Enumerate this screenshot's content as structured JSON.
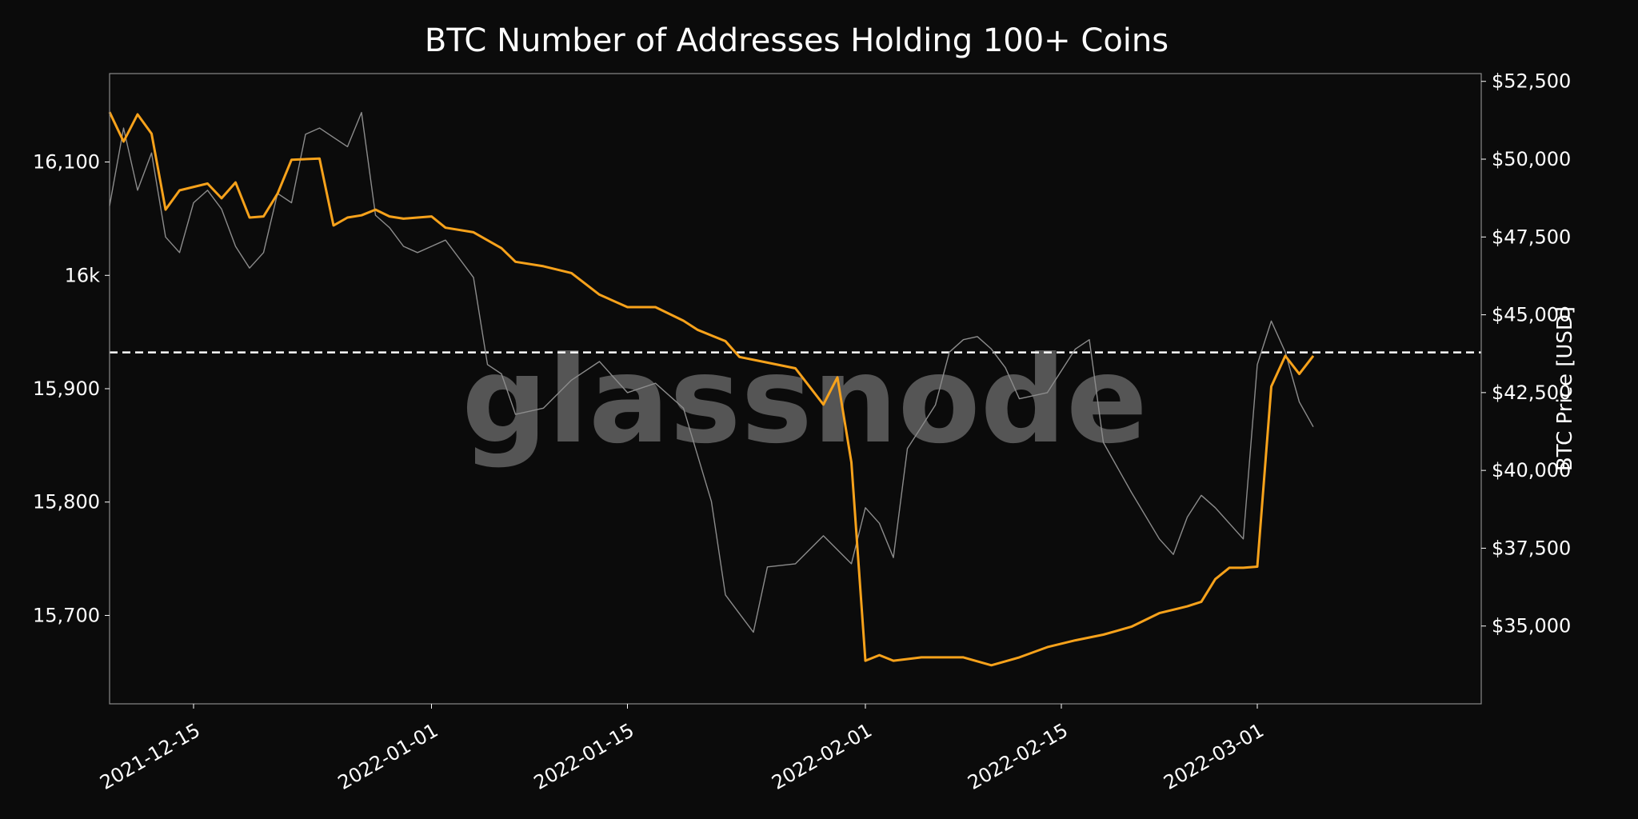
{
  "chart_data": {
    "type": "line",
    "title": "BTC Number of Addresses Holding 100+ Coins",
    "watermark": "glassnode",
    "xlim": [
      "2021-12-09",
      "2022-03-17"
    ],
    "x_ticks": [
      "2021-12-15",
      "2022-01-01",
      "2022-01-15",
      "2022-02-01",
      "2022-02-15",
      "2022-03-01"
    ],
    "left_axis": {
      "ylim": [
        15622,
        16178
      ],
      "ticks": [
        15700,
        15800,
        15900,
        16000,
        16100
      ],
      "tick_labels": [
        "15,700",
        "15,800",
        "15,900",
        "16k",
        "16,100"
      ]
    },
    "right_axis": {
      "ylabel": "BTC Price [USD]",
      "ylim": [
        32500,
        52750
      ],
      "ticks": [
        35000,
        37500,
        40000,
        42500,
        45000,
        47500,
        50000,
        52500
      ],
      "tick_labels": [
        "$35,000",
        "$37,500",
        "$40,000",
        "$42,500",
        "$45,000",
        "$47,500",
        "$50,000",
        "$52,500"
      ]
    },
    "reference_line": {
      "axis": "left",
      "value": 15932,
      "style": "dashed",
      "color": "#ffffff"
    },
    "series": [
      {
        "axis": "left",
        "color": "#f7a21b",
        "x": [
          "2021-12-09",
          "2021-12-10",
          "2021-12-11",
          "2021-12-12",
          "2021-12-13",
          "2021-12-14",
          "2021-12-16",
          "2021-12-17",
          "2021-12-18",
          "2021-12-19",
          "2021-12-20",
          "2021-12-21",
          "2021-12-22",
          "2021-12-24",
          "2021-12-25",
          "2021-12-26",
          "2021-12-27",
          "2021-12-28",
          "2021-12-29",
          "2021-12-30",
          "2022-01-01",
          "2022-01-02",
          "2022-01-04",
          "2022-01-06",
          "2022-01-07",
          "2022-01-09",
          "2022-01-11",
          "2022-01-13",
          "2022-01-15",
          "2022-01-17",
          "2022-01-19",
          "2022-01-20",
          "2022-01-22",
          "2022-01-23",
          "2022-01-25",
          "2022-01-27",
          "2022-01-29",
          "2022-01-30",
          "2022-01-31",
          "2022-02-01",
          "2022-02-02",
          "2022-02-03",
          "2022-02-05",
          "2022-02-08",
          "2022-02-10",
          "2022-02-12",
          "2022-02-14",
          "2022-02-16",
          "2022-02-18",
          "2022-02-20",
          "2022-02-22",
          "2022-02-24",
          "2022-02-25",
          "2022-02-26",
          "2022-02-27",
          "2022-02-28",
          "2022-03-01",
          "2022-03-02",
          "2022-03-03",
          "2022-03-04",
          "2022-03-05"
        ],
        "y": [
          16144,
          16118,
          16142,
          16125,
          16058,
          16075,
          16081,
          16068,
          16082,
          16051,
          16052,
          16072,
          16102,
          16103,
          16044,
          16051,
          16053,
          16058,
          16052,
          16050,
          16052,
          16042,
          16038,
          16024,
          16012,
          16008,
          16002,
          15983,
          15972,
          15972,
          15960,
          15952,
          15942,
          15928,
          15923,
          15918,
          15886,
          15910,
          15835,
          15660,
          15665,
          15660,
          15663,
          15663,
          15656,
          15663,
          15672,
          15678,
          15683,
          15690,
          15702,
          15708,
          15712,
          15732,
          15742,
          15742,
          15743,
          15902,
          15929,
          15913,
          15929
        ]
      },
      {
        "axis": "right",
        "color": "#8c8c8c",
        "x": [
          "2021-12-09",
          "2021-12-10",
          "2021-12-11",
          "2021-12-12",
          "2021-12-13",
          "2021-12-14",
          "2021-12-15",
          "2021-12-16",
          "2021-12-17",
          "2021-12-18",
          "2021-12-19",
          "2021-12-20",
          "2021-12-21",
          "2021-12-22",
          "2021-12-23",
          "2021-12-24",
          "2021-12-25",
          "2021-12-26",
          "2021-12-27",
          "2021-12-28",
          "2021-12-29",
          "2021-12-30",
          "2021-12-31",
          "2022-01-01",
          "2022-01-02",
          "2022-01-03",
          "2022-01-04",
          "2022-01-05",
          "2022-01-06",
          "2022-01-07",
          "2022-01-09",
          "2022-01-11",
          "2022-01-13",
          "2022-01-15",
          "2022-01-17",
          "2022-01-19",
          "2022-01-21",
          "2022-01-22",
          "2022-01-23",
          "2022-01-24",
          "2022-01-25",
          "2022-01-27",
          "2022-01-29",
          "2022-01-31",
          "2022-02-01",
          "2022-02-02",
          "2022-02-03",
          "2022-02-04",
          "2022-02-05",
          "2022-02-06",
          "2022-02-07",
          "2022-02-08",
          "2022-02-09",
          "2022-02-10",
          "2022-02-11",
          "2022-02-12",
          "2022-02-14",
          "2022-02-16",
          "2022-02-17",
          "2022-02-18",
          "2022-02-20",
          "2022-02-22",
          "2022-02-23",
          "2022-02-24",
          "2022-02-25",
          "2022-02-26",
          "2022-02-28",
          "2022-03-01",
          "2022-03-02",
          "2022-03-03",
          "2022-03-04",
          "2022-03-05"
        ],
        "y": [
          48500,
          51000,
          49000,
          50200,
          47500,
          47000,
          48600,
          49000,
          48400,
          47200,
          46500,
          47000,
          48900,
          48600,
          50800,
          51000,
          50700,
          50400,
          51500,
          48200,
          47800,
          47200,
          47000,
          47200,
          47400,
          46800,
          46200,
          43400,
          43100,
          41800,
          42000,
          42900,
          43500,
          42500,
          42800,
          42000,
          39000,
          36000,
          35400,
          34800,
          36900,
          37000,
          37900,
          37000,
          38800,
          38300,
          37200,
          40700,
          41400,
          42100,
          43800,
          44200,
          44300,
          43900,
          43300,
          42300,
          42500,
          43900,
          44200,
          40900,
          39300,
          37800,
          37300,
          38500,
          39200,
          38800,
          37800,
          43400,
          44800,
          43800,
          42200,
          41400
        ]
      }
    ]
  }
}
